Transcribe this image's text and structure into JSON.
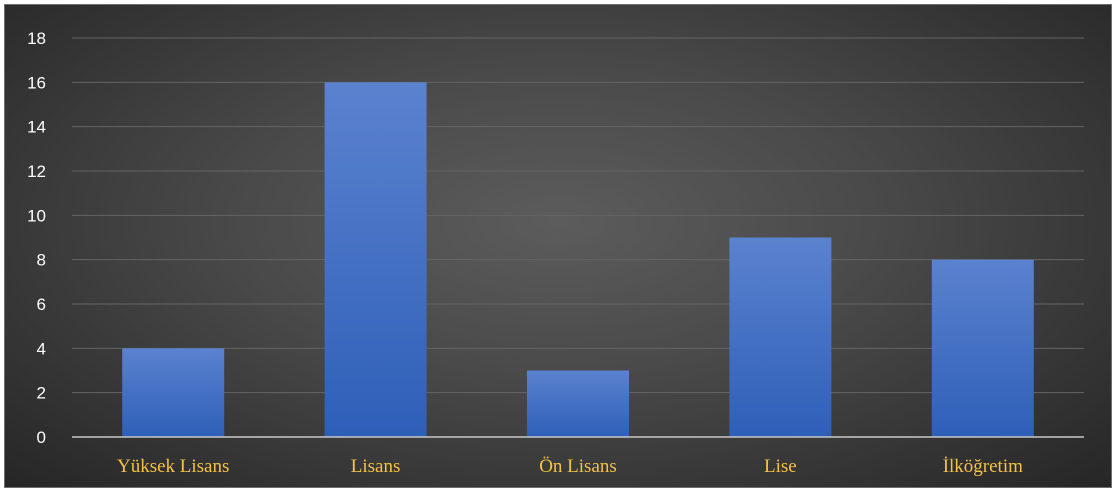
{
  "chart_data": {
    "type": "bar",
    "categories": [
      "Yüksek Lisans",
      "Lisans",
      "Ön Lisans",
      "Lise",
      "İlköğretim"
    ],
    "values": [
      4,
      16,
      3,
      9,
      8
    ],
    "title": "",
    "xlabel": "",
    "ylabel": "",
    "ylim": [
      0,
      18
    ],
    "yticks": [
      0,
      2,
      4,
      6,
      8,
      10,
      12,
      14,
      16,
      18
    ],
    "grid": true,
    "legend": "none"
  },
  "colors": {
    "bar_top": "#5b82cf",
    "bar_bottom": "#2e5fb8",
    "gridline": "#646464",
    "axis_line": "#c8c8c8",
    "category_label": "#f5c242",
    "tick_label": "#ffffff"
  }
}
